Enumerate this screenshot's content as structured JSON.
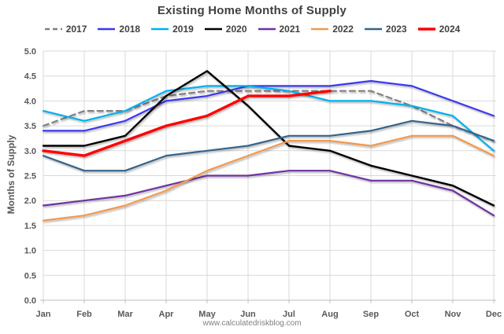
{
  "chart_data": {
    "type": "line",
    "title": "Existing Home Months of Supply",
    "ylabel": "Months of Supply",
    "xlabel": "",
    "footer": "www.calculatedriskblog.com",
    "legend_position": "top",
    "grid": true,
    "ylim": [
      0.0,
      5.0
    ],
    "ytick_step": 0.5,
    "yticks": [
      "0.0",
      "0.5",
      "1.0",
      "1.5",
      "2.0",
      "2.5",
      "3.0",
      "3.5",
      "4.0",
      "4.5",
      "5.0"
    ],
    "categories": [
      "Jan",
      "Feb",
      "Mar",
      "Apr",
      "May",
      "Jun",
      "Jul",
      "Aug",
      "Sep",
      "Oct",
      "Nov",
      "Dec"
    ],
    "series": [
      {
        "name": "2017",
        "color": "#808080",
        "dashed": true,
        "width": 2.2,
        "values": [
          3.5,
          3.8,
          3.8,
          4.1,
          4.2,
          4.2,
          4.2,
          4.2,
          4.2,
          3.9,
          3.5,
          3.2
        ]
      },
      {
        "name": "2018",
        "color": "#3a38f0",
        "dashed": false,
        "width": 2.2,
        "values": [
          3.4,
          3.4,
          3.6,
          4.0,
          4.1,
          4.3,
          4.3,
          4.3,
          4.4,
          4.3,
          4.0,
          3.7
        ]
      },
      {
        "name": "2019",
        "color": "#00b0f0",
        "dashed": false,
        "width": 2.2,
        "values": [
          3.8,
          3.6,
          3.8,
          4.2,
          4.3,
          4.3,
          4.2,
          4.0,
          4.0,
          3.9,
          3.7,
          3.0
        ]
      },
      {
        "name": "2020",
        "color": "#000000",
        "dashed": false,
        "width": 2.4,
        "values": [
          3.1,
          3.1,
          3.3,
          4.1,
          4.6,
          3.9,
          3.1,
          3.0,
          2.7,
          2.5,
          2.3,
          1.9
        ]
      },
      {
        "name": "2021",
        "color": "#7030a0",
        "dashed": false,
        "width": 2.2,
        "values": [
          1.9,
          2.0,
          2.1,
          2.3,
          2.5,
          2.5,
          2.6,
          2.6,
          2.4,
          2.4,
          2.2,
          1.7
        ]
      },
      {
        "name": "2022",
        "color": "#f2994e",
        "dashed": false,
        "width": 2.2,
        "values": [
          1.6,
          1.7,
          1.9,
          2.2,
          2.6,
          2.9,
          3.2,
          3.2,
          3.1,
          3.3,
          3.3,
          2.9
        ]
      },
      {
        "name": "2023",
        "color": "#36648b",
        "dashed": false,
        "width": 2.2,
        "values": [
          2.9,
          2.6,
          2.6,
          2.9,
          3.0,
          3.1,
          3.3,
          3.3,
          3.4,
          3.6,
          3.5,
          3.2
        ]
      },
      {
        "name": "2024",
        "color": "#ff0000",
        "dashed": false,
        "width": 3.4,
        "values": [
          3.0,
          2.9,
          3.2,
          3.5,
          3.7,
          4.1,
          4.1,
          4.2
        ]
      }
    ],
    "colors": {
      "grid": "#d9d9d9",
      "axis": "#bfbfbf",
      "tick_text": "#595959",
      "title_text": "#404040",
      "footer_text": "#808080"
    }
  }
}
